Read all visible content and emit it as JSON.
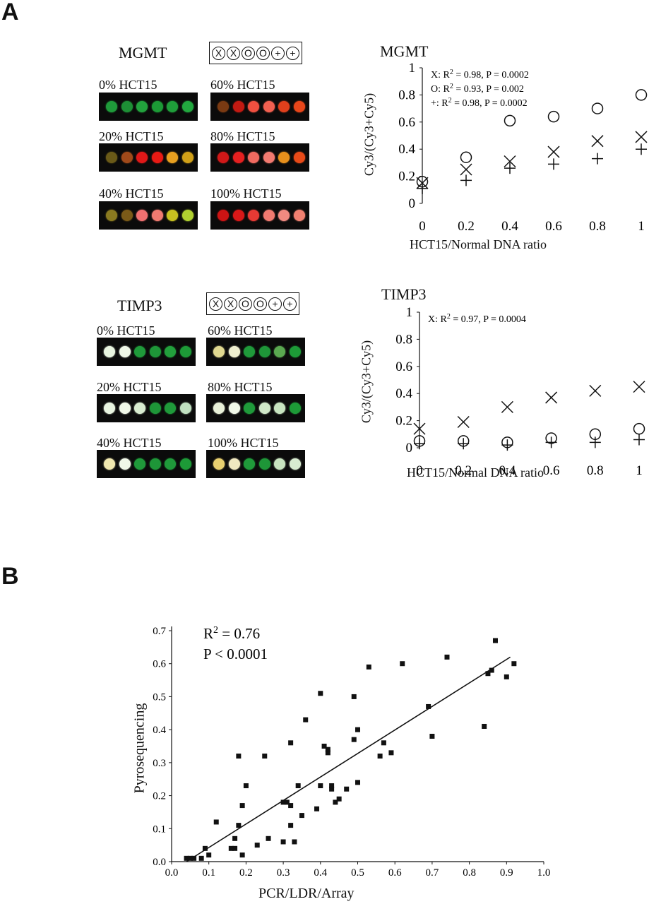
{
  "panel_labels": {
    "a": "A",
    "b": "B"
  },
  "mgmt": {
    "title": "MGMT",
    "legend": [
      "X",
      "X",
      "O",
      "O",
      "+",
      "+"
    ],
    "wells": [
      {
        "label": "0% HCT15",
        "spots": [
          "#1f9a3a",
          "#1d8f35",
          "#22a23d",
          "#1c9a36",
          "#1f9e3a",
          "#22a83f"
        ]
      },
      {
        "label": "60% HCT15",
        "spots": [
          "#7a3a12",
          "#c21a12",
          "#f05040",
          "#f26050",
          "#e0401c",
          "#e8461a"
        ]
      },
      {
        "label": "20% HCT15",
        "spots": [
          "#6a5a18",
          "#a04a1a",
          "#e01818",
          "#e81a14",
          "#e8a020",
          "#d0a018"
        ]
      },
      {
        "label": "80% HCT15",
        "spots": [
          "#d01818",
          "#e52020",
          "#f06a60",
          "#f27a70",
          "#e8901c",
          "#e84a18"
        ]
      },
      {
        "label": "40% HCT15",
        "spots": [
          "#8a7a20",
          "#7a5a18",
          "#f07070",
          "#f07a70",
          "#c8c020",
          "#b0d030"
        ]
      },
      {
        "label": "100% HCT15",
        "spots": [
          "#cc1414",
          "#d81818",
          "#e83a34",
          "#f07a70",
          "#f08a80",
          "#f08070"
        ]
      }
    ]
  },
  "timp3": {
    "title": "TIMP3",
    "legend": [
      "X",
      "X",
      "O",
      "O",
      "+",
      "+"
    ],
    "wells": [
      {
        "label": "0% HCT15",
        "spots": [
          "#e8f4e0",
          "#f0f8e8",
          "#1f9a3a",
          "#1e9638",
          "#22a03c",
          "#1d9a37"
        ]
      },
      {
        "label": "60% HCT15",
        "spots": [
          "#e0d890",
          "#f0f0d0",
          "#1f9a3a",
          "#1e9638",
          "#5aa850",
          "#1d9a37"
        ]
      },
      {
        "label": "20% HCT15",
        "spots": [
          "#e8f4e0",
          "#f0f8e8",
          "#d8ecd0",
          "#1e9638",
          "#1f9a3a",
          "#c0e0c0"
        ]
      },
      {
        "label": "80% HCT15",
        "spots": [
          "#e8f0d8",
          "#f0f8e8",
          "#1f9a3a",
          "#d0e8c8",
          "#c8e4c0",
          "#1d9a37"
        ]
      },
      {
        "label": "40% HCT15",
        "spots": [
          "#f0e8b0",
          "#f0f8e8",
          "#1f9a3a",
          "#1e9638",
          "#1f9a3a",
          "#1d9a37"
        ]
      },
      {
        "label": "100% HCT15",
        "spots": [
          "#e8d070",
          "#f0e8c0",
          "#1f9a3a",
          "#1e9638",
          "#c8e4c0",
          "#d8ecd0"
        ]
      }
    ]
  },
  "chart_data": [
    {
      "type": "scatter",
      "title": "MGMT",
      "xlabel": "HCT15/Normal DNA ratio",
      "ylabel": "Cy3/(Cy3+Cy5)",
      "xlim": [
        0,
        1
      ],
      "ylim": [
        0,
        1
      ],
      "x_ticks": [
        "0",
        "0.2",
        "0.4",
        "0.6",
        "0.8",
        "1"
      ],
      "y_ticks": [
        "0",
        "0.2",
        "0.4",
        "0.6",
        "0.8",
        "1"
      ],
      "annotations": [
        "X: R² = 0.98, P = 0.0002",
        "O: R² = 0.93, P = 0.002",
        "+: R² = 0.98, P = 0.0002"
      ],
      "series": [
        {
          "marker": "x",
          "x": [
            0,
            0.2,
            0.4,
            0.6,
            0.8,
            1
          ],
          "y": [
            0.15,
            0.25,
            0.31,
            0.38,
            0.46,
            0.49
          ]
        },
        {
          "marker": "o",
          "x": [
            0,
            0.2,
            0.4,
            0.6,
            0.8,
            1
          ],
          "y": [
            0.16,
            0.34,
            0.61,
            0.64,
            0.7,
            0.8
          ]
        },
        {
          "marker": "+",
          "x": [
            0,
            0.2,
            0.4,
            0.6,
            0.8,
            1
          ],
          "y": [
            0.11,
            0.17,
            0.26,
            0.29,
            0.33,
            0.4
          ]
        }
      ]
    },
    {
      "type": "scatter",
      "title": "TIMP3",
      "xlabel": "HCT15/Normal DNA ratio",
      "ylabel": "Cy3/(Cy3+Cy5)",
      "xlim": [
        0,
        1
      ],
      "ylim": [
        0,
        1
      ],
      "x_ticks": [
        "0",
        "0.2",
        "0.4",
        "0.6",
        "0.8",
        "1"
      ],
      "y_ticks": [
        "0",
        "0.2",
        "0.4",
        "0.6",
        "0.8",
        "1"
      ],
      "annotations": [
        "X: R² = 0.97, P = 0.0004"
      ],
      "series": [
        {
          "marker": "x",
          "x": [
            0,
            0.2,
            0.4,
            0.6,
            0.8,
            1
          ],
          "y": [
            0.14,
            0.19,
            0.3,
            0.37,
            0.42,
            0.45
          ]
        },
        {
          "marker": "o",
          "x": [
            0,
            0.2,
            0.4,
            0.6,
            0.8,
            1
          ],
          "y": [
            0.05,
            0.05,
            0.04,
            0.07,
            0.1,
            0.14
          ]
        },
        {
          "marker": "+",
          "x": [
            0,
            0.2,
            0.4,
            0.6,
            0.8,
            1
          ],
          "y": [
            0.03,
            0.03,
            0.02,
            0.04,
            0.04,
            0.06
          ]
        }
      ]
    },
    {
      "type": "scatter",
      "xlabel": "PCR/LDR/Array",
      "ylabel": "Pyrosequencing",
      "xlim": [
        0,
        1
      ],
      "ylim": [
        0,
        0.7
      ],
      "x_ticks": [
        "0.0",
        "0.1",
        "0.2",
        "0.3",
        "0.4",
        "0.5",
        "0.6",
        "0.7",
        "0.8",
        "0.9",
        "1.0"
      ],
      "y_ticks": [
        "0.0",
        "0.1",
        "0.2",
        "0.3",
        "0.4",
        "0.5",
        "0.6",
        "0.7"
      ],
      "annotations": [
        "R² = 0.76",
        "P < 0.0001"
      ],
      "fit_line": {
        "x": [
          0.04,
          0.91
        ],
        "y": [
          0.0,
          0.62
        ]
      },
      "points": [
        [
          0.04,
          0.01
        ],
        [
          0.05,
          0.01
        ],
        [
          0.06,
          0.01
        ],
        [
          0.08,
          0.01
        ],
        [
          0.1,
          0.02
        ],
        [
          0.09,
          0.04
        ],
        [
          0.12,
          0.12
        ],
        [
          0.16,
          0.04
        ],
        [
          0.17,
          0.04
        ],
        [
          0.17,
          0.07
        ],
        [
          0.18,
          0.11
        ],
        [
          0.18,
          0.32
        ],
        [
          0.19,
          0.17
        ],
        [
          0.19,
          0.02
        ],
        [
          0.2,
          0.23
        ],
        [
          0.23,
          0.05
        ],
        [
          0.25,
          0.32
        ],
        [
          0.26,
          0.07
        ],
        [
          0.3,
          0.06
        ],
        [
          0.3,
          0.18
        ],
        [
          0.31,
          0.18
        ],
        [
          0.32,
          0.11
        ],
        [
          0.32,
          0.17
        ],
        [
          0.32,
          0.36
        ],
        [
          0.33,
          0.06
        ],
        [
          0.34,
          0.23
        ],
        [
          0.35,
          0.14
        ],
        [
          0.36,
          0.43
        ],
        [
          0.39,
          0.16
        ],
        [
          0.4,
          0.23
        ],
        [
          0.4,
          0.51
        ],
        [
          0.41,
          0.35
        ],
        [
          0.42,
          0.33
        ],
        [
          0.42,
          0.34
        ],
        [
          0.43,
          0.22
        ],
        [
          0.43,
          0.23
        ],
        [
          0.44,
          0.18
        ],
        [
          0.45,
          0.19
        ],
        [
          0.47,
          0.22
        ],
        [
          0.49,
          0.37
        ],
        [
          0.49,
          0.5
        ],
        [
          0.5,
          0.24
        ],
        [
          0.5,
          0.4
        ],
        [
          0.53,
          0.59
        ],
        [
          0.56,
          0.32
        ],
        [
          0.57,
          0.36
        ],
        [
          0.59,
          0.33
        ],
        [
          0.62,
          0.6
        ],
        [
          0.69,
          0.47
        ],
        [
          0.7,
          0.38
        ],
        [
          0.74,
          0.62
        ],
        [
          0.84,
          0.41
        ],
        [
          0.85,
          0.57
        ],
        [
          0.86,
          0.58
        ],
        [
          0.87,
          0.67
        ],
        [
          0.9,
          0.56
        ],
        [
          0.92,
          0.6
        ]
      ]
    }
  ]
}
